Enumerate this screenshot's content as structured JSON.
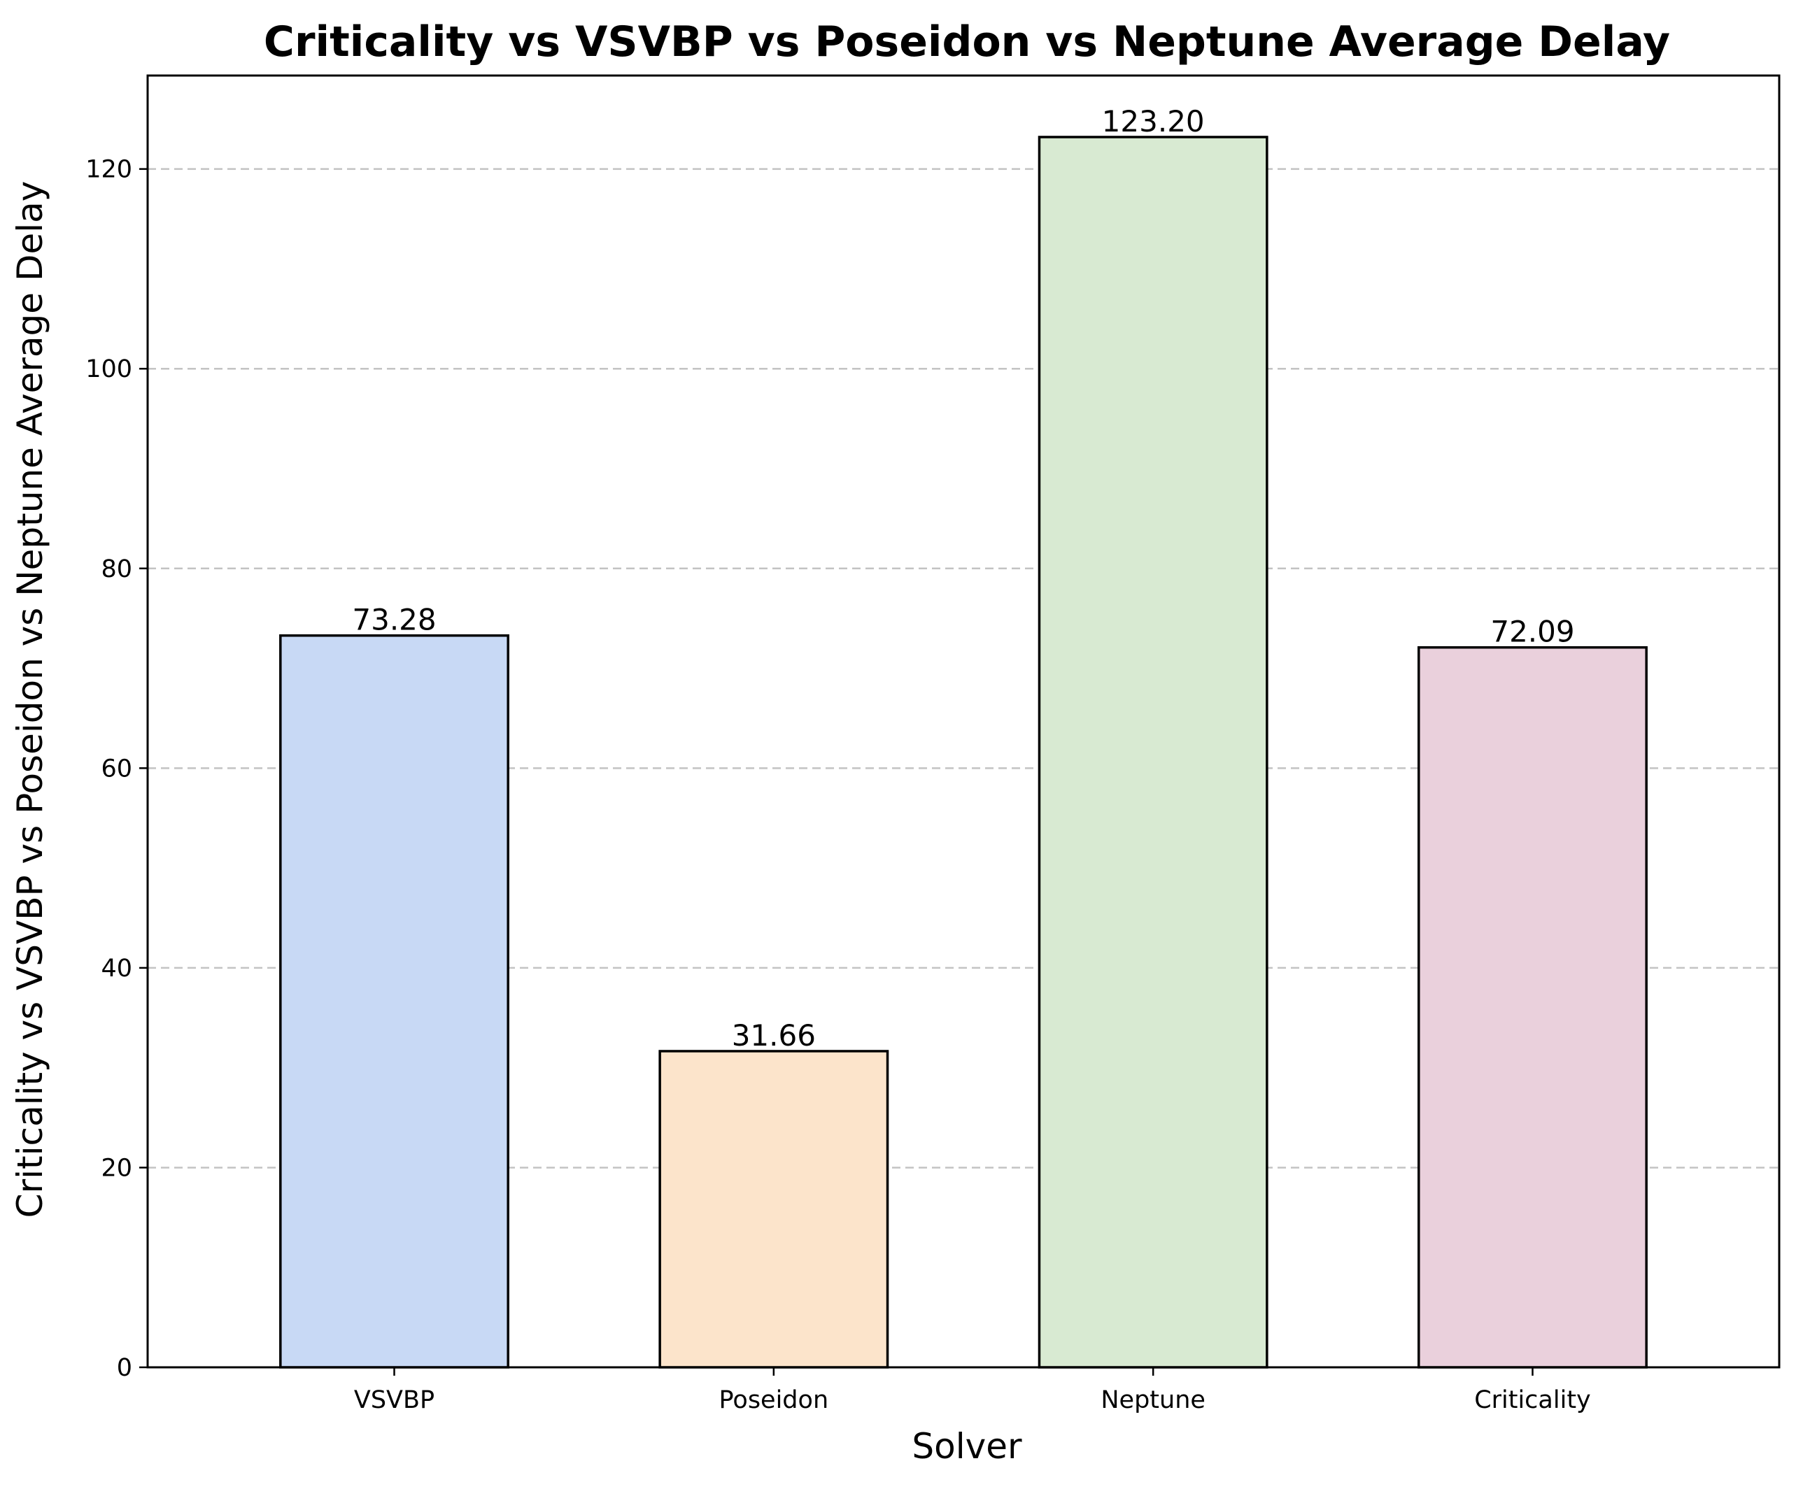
{
  "chart_data": {
    "type": "bar",
    "title": "Criticality vs VSVBP vs Poseidon vs Neptune Average Delay",
    "xlabel": "Solver",
    "ylabel": "Criticality vs VSVBP vs Poseidon vs Neptune Average Delay",
    "categories": [
      "VSVBP",
      "Poseidon",
      "Neptune",
      "Criticality"
    ],
    "values": [
      73.28,
      31.66,
      123.2,
      72.09
    ],
    "value_labels": [
      "73.28",
      "31.66",
      "123.20",
      "72.09"
    ],
    "colors": [
      "#c8d9f5",
      "#fce4cb",
      "#d8ead2",
      "#ead0dc"
    ],
    "ylim": [
      0,
      129.36
    ],
    "yticks": [
      0,
      20,
      40,
      60,
      80,
      100,
      120
    ],
    "grid": "y-dashed",
    "legend": "none"
  }
}
